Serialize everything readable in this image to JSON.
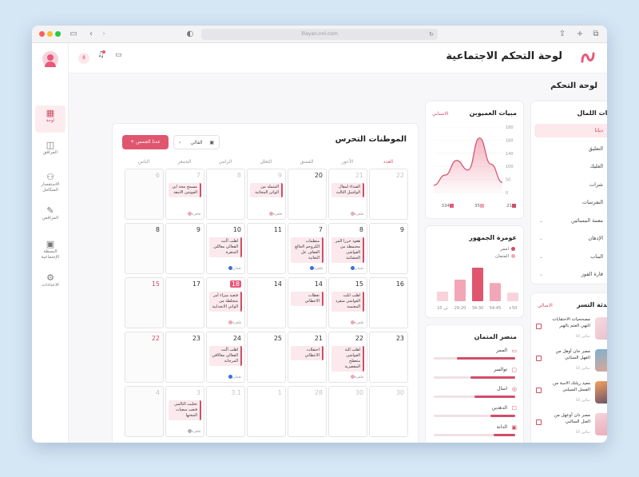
{
  "browser": {
    "url": "lllayan.nnl.com"
  },
  "app": {
    "title": "لوحة التحكم الاجتماعية",
    "page_title": "لوحة التحكم",
    "badge": "8"
  },
  "sidebar": {
    "items": [
      {
        "label": "لوحة",
        "icon": "grid-icon",
        "glyph": "▦"
      },
      {
        "label": "المرافق",
        "icon": "chart-icon",
        "glyph": "◫"
      },
      {
        "label": "الاستفسار المتكامل",
        "icon": "users-icon",
        "glyph": "⚇"
      },
      {
        "label": "المراقص",
        "icon": "edit-icon",
        "glyph": "✎"
      },
      {
        "label": "البسطة الإجتماعية",
        "icon": "calendar-icon",
        "glyph": "▣"
      },
      {
        "label": "الاعدادات",
        "icon": "gear-icon",
        "glyph": "⚙"
      }
    ]
  },
  "menu": {
    "title": "دنيات اللمال",
    "items": [
      {
        "label": "ديانا",
        "glyph": "♥",
        "chev": false,
        "active": true
      },
      {
        "label": "التعليق",
        "glyph": "▭",
        "chev": false
      },
      {
        "label": "العليك",
        "glyph": "➦",
        "chev": false
      },
      {
        "label": "شرات",
        "glyph": "♺",
        "chev": false
      },
      {
        "label": "التفرسات",
        "glyph": "◌",
        "chev": false
      },
      {
        "label": "معمة المسائين",
        "glyph": "☷",
        "chev": true
      },
      {
        "label": "الإدهان",
        "glyph": "◉",
        "chev": true
      },
      {
        "label": "البناب",
        "glyph": "⌂",
        "chev": true
      },
      {
        "label": "قارة الفوز",
        "glyph": "▤",
        "chev": true
      }
    ]
  },
  "latest": {
    "title": "الحدثة التسر",
    "link": "الاصالي",
    "items": [
      {
        "title": "مصححيات الاحتقابات التهي العتم بالهبر",
        "meta": "10 صالين"
      },
      {
        "title": "مصر حان أوهل من الفهل السثاني",
        "meta": "10 صالين"
      },
      {
        "title": "معيد ريلتك الاسة من الفسل السيلني",
        "meta": "10 صالين"
      },
      {
        "title": "مصر دان أوعهل من العتل السالني",
        "meta": "10 صالين"
      }
    ]
  },
  "sales": {
    "title": "مبيات العميوبن",
    "link": "الاسناني",
    "yticks": [
      "180",
      "160",
      "140",
      "100",
      "50",
      "0"
    ],
    "legend": [
      {
        "label": "21",
        "color": "#d14d67"
      },
      {
        "label": "35",
        "color": "#f1a7b7"
      },
      {
        "label": "334",
        "color": "#e8587a"
      }
    ]
  },
  "chart_data": {
    "type": "area",
    "y": [
      20,
      48,
      88,
      62,
      150,
      78,
      28
    ],
    "ylim": [
      0,
      180
    ]
  },
  "age": {
    "title": "عومرة الجمهور",
    "legend": [
      {
        "label": "اممر",
        "color": "#d14d67"
      },
      {
        "label": "المتمان",
        "color": "#f1a7b7"
      }
    ],
    "bar_values": [
      18,
      38,
      70,
      45,
      20
    ],
    "categories": [
      "+50",
      "54-45",
      "34-30",
      "29-20",
      "10 ثي"
    ]
  },
  "platform": {
    "title": "منصر المتمان",
    "items": [
      {
        "label": "الممر",
        "glyph": "▭",
        "value": 0.72
      },
      {
        "label": "توالسر",
        "glyph": "▢",
        "value": 0.55
      },
      {
        "label": "اسال",
        "glyph": "◎",
        "value": 0.5
      },
      {
        "label": "الدهدين",
        "glyph": "☐",
        "value": 0.3
      },
      {
        "label": "الدانة",
        "glyph": "▣",
        "value": 0.26
      }
    ]
  },
  "calendar": {
    "title": "الموطنات التحرس",
    "add_label": "عدنا الجمس",
    "period_label": "الفالي",
    "days": [
      "العدد",
      "الأعور",
      "الفسق",
      "الثعلل",
      "الزامي",
      "الجمعر",
      "الناس"
    ],
    "weeks": [
      [
        {
          "n": "22",
          "dim": true
        },
        {
          "n": "21",
          "dim": true,
          "ev": "الفنداء لمقال الواشيل الثالث",
          "tag": "فلفرة",
          "tagc": ""
        },
        {
          "n": "20"
        },
        {
          "n": "9",
          "dim": true,
          "ev": "المثمله من الواثن المخاثية",
          "tag": "فلفرة",
          "tagc": ""
        },
        {
          "n": "8",
          "dim": true
        },
        {
          "n": "7",
          "dim": true,
          "ev": "مسمح محد ابن الفوشن الامقة",
          "tag": "فلفرة",
          "tagc": ""
        },
        {
          "n": "6",
          "dim": true,
          "muted": true
        }
      ],
      [
        {
          "n": "9"
        },
        {
          "n": "8",
          "ev": "هعود حررا المر محتمطة من القواشي الجشاثية",
          "tag": "نعمان",
          "tagc": "blue"
        },
        {
          "n": "7",
          "ev": "منظمات الكروجم الحالغ القفاف عل التعاثية",
          "tag": "فلفرة",
          "tagc": "blue"
        },
        {
          "n": "11"
        },
        {
          "n": "10",
          "ev": "اهلب أأنت الفعالي معاللي المثقرة",
          "tag": "نعمان",
          "tagc": "blue"
        },
        {
          "n": "9"
        },
        {
          "n": "8",
          "muted": true
        }
      ],
      [
        {
          "n": "16"
        },
        {
          "n": "15",
          "ev": "اهلب انلت العواشي متقرد المعتمبة",
          "tag": "فلفرة",
          "tagc": ""
        },
        {
          "n": "14",
          "ev": "تعطات الاعطاني",
          "tag": "",
          "tagc": ""
        },
        {
          "n": "14"
        },
        {
          "n": "18",
          "badge": true,
          "ev": "فتعيد ميزاء أمر متحلطة من الواثي الانجدابية",
          "tag": "فلفرة",
          "tagc": ""
        },
        {
          "n": "17"
        },
        {
          "n": "15",
          "red": true,
          "muted": true
        }
      ],
      [
        {
          "n": "23"
        },
        {
          "n": "22",
          "ev": "اهلب النة العواشي مثعقلح المقصرية",
          "tag": "فلفرة",
          "tagc": ""
        },
        {
          "n": "21",
          "ev": "احتفلات الاعطاني",
          "tag": "",
          "tagc": ""
        },
        {
          "n": "25"
        },
        {
          "n": "24",
          "ev": "اهلب أأنت الفعالي معالاقي المرجانة",
          "tag": "نعمان",
          "tagc": "blue"
        },
        {
          "n": "23"
        },
        {
          "n": "22",
          "red": true,
          "muted": true
        }
      ],
      [
        {
          "n": "30",
          "dim": true
        },
        {
          "n": "30",
          "dim": true
        },
        {
          "n": "28",
          "dim": true
        },
        {
          "n": "1",
          "dim": true
        },
        {
          "n": "3.1",
          "dim": true
        },
        {
          "n": "3",
          "dim": true,
          "ev": "تخليث التالمي فتعب سعيات المختها",
          "tag": "فلفرة",
          "tagc": "gray"
        },
        {
          "n": "4",
          "dim": true,
          "muted": true
        }
      ]
    ]
  }
}
